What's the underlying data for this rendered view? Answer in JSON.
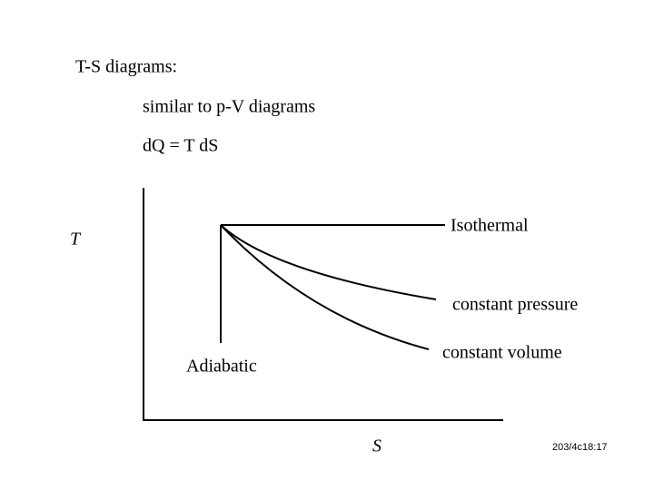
{
  "header": {
    "title": "T-S diagrams:"
  },
  "bullets": [
    "similar to p-V diagrams",
    "dQ = T dS"
  ],
  "diagram": {
    "y_axis_label": "T",
    "x_axis_label": "S",
    "curves": {
      "isothermal": "Isothermal",
      "constant_pressure": "constant pressure",
      "constant_volume": "constant volume",
      "adiabatic": "Adiabatic"
    }
  },
  "footer": {
    "stamp": "203/4c18:17"
  }
}
